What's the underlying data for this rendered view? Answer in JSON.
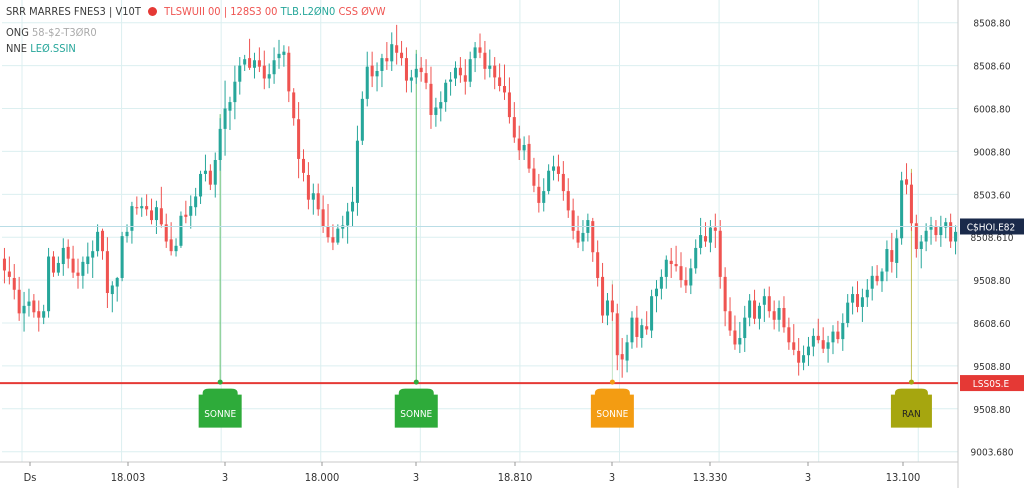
{
  "header": {
    "symbol_line": "SRR MARRES FNES3 | V10T",
    "ohlc_red": "TLSWUII 00 | 128S3 00",
    "ohlc_green": "TLB.L2ØN0",
    "ohlc_tail": "CSS ØVW",
    "line2_label": "ONG",
    "line2_value": "58-$2-T3ØR0",
    "line3_label": "NNE",
    "line3_value": "LEØ.SSIN"
  },
  "colors": {
    "up": "#26a69a",
    "down": "#ef5350",
    "support_line": "#e53935",
    "grid": "#dceff0",
    "current_label_bg": "#1a2a4a",
    "marker_green": "#2eab3a",
    "marker_orange": "#f39c12",
    "marker_olive": "#a6a60f"
  },
  "chart_data": {
    "type": "candlestick",
    "y_axis": {
      "ticks": [
        "8508.80",
        "8508.60",
        "6008.80",
        "9008.80",
        "8503.60",
        "8508.610",
        "9508.80",
        "8608.60",
        "9508.80",
        "9508.80",
        "9003.680"
      ],
      "tick_values": [
        8600,
        8560,
        8520,
        8480,
        8440,
        8400,
        8360,
        8320,
        8280,
        8240,
        8200
      ],
      "range": [
        8196,
        8610
      ]
    },
    "x_axis": {
      "ticks": [
        "Ds",
        "18.003",
        "3",
        "18.000",
        "3",
        "18.810",
        "3",
        "13.330",
        "3",
        "13.100"
      ]
    },
    "current_price": {
      "value": 8410,
      "label": "C$HOI.E82"
    },
    "support": {
      "value": 8264,
      "label": "LSS0S.E"
    },
    "markers": [
      {
        "label": "SONNE",
        "color": "green",
        "candle": 44
      },
      {
        "label": "SONNE",
        "color": "green",
        "candle": 84
      },
      {
        "label": "SONNE",
        "color": "orange",
        "candle": 124
      },
      {
        "label": "RAN",
        "color": "olive",
        "candle": 185
      }
    ],
    "candles": [
      [
        8380,
        8390,
        8357,
        8369
      ],
      [
        8368,
        8382,
        8356,
        8363
      ],
      [
        8362,
        8375,
        8342,
        8351
      ],
      [
        8351,
        8363,
        8322,
        8329
      ],
      [
        8329,
        8349,
        8312,
        8336
      ],
      [
        8336,
        8352,
        8326,
        8340
      ],
      [
        8341,
        8347,
        8325,
        8330
      ],
      [
        8331,
        8341,
        8312,
        8325
      ],
      [
        8325,
        8337,
        8319,
        8331
      ],
      [
        8331,
        8390,
        8325,
        8382
      ],
      [
        8382,
        8387,
        8363,
        8367
      ],
      [
        8367,
        8382,
        8364,
        8376
      ],
      [
        8375,
        8399,
        8364,
        8390
      ],
      [
        8391,
        8398,
        8371,
        8380
      ],
      [
        8380,
        8392,
        8362,
        8367
      ],
      [
        8367,
        8380,
        8352,
        8364
      ],
      [
        8364,
        8382,
        8352,
        8377
      ],
      [
        8375,
        8395,
        8366,
        8382
      ],
      [
        8381,
        8397,
        8362,
        8387
      ],
      [
        8387,
        8412,
        8382,
        8405
      ],
      [
        8406,
        8408,
        8379,
        8387
      ],
      [
        8387,
        8400,
        8334,
        8348
      ],
      [
        8347,
        8359,
        8330,
        8355
      ],
      [
        8354,
        8363,
        8340,
        8362
      ],
      [
        8362,
        8405,
        8359,
        8401
      ],
      [
        8401,
        8412,
        8395,
        8405
      ],
      [
        8406,
        8433,
        8394,
        8429
      ],
      [
        8428,
        8438,
        8421,
        8427
      ],
      [
        8427,
        8437,
        8419,
        8429
      ],
      [
        8429,
        8440,
        8420,
        8426
      ],
      [
        8425,
        8436,
        8412,
        8416
      ],
      [
        8416,
        8434,
        8403,
        8428
      ],
      [
        8427,
        8447,
        8409,
        8412
      ],
      [
        8412,
        8422,
        8390,
        8396
      ],
      [
        8398,
        8414,
        8383,
        8387
      ],
      [
        8387,
        8399,
        8382,
        8392
      ],
      [
        8392,
        8424,
        8390,
        8420
      ],
      [
        8421,
        8434,
        8413,
        8419
      ],
      [
        8420,
        8439,
        8408,
        8429
      ],
      [
        8428,
        8446,
        8420,
        8438
      ],
      [
        8438,
        8462,
        8431,
        8459
      ],
      [
        8459,
        8477,
        8452,
        8462
      ],
      [
        8462,
        8468,
        8444,
        8449
      ],
      [
        8449,
        8479,
        8437,
        8472
      ],
      [
        8472,
        8511,
        8462,
        8501
      ],
      [
        8501,
        8546,
        8476,
        8520
      ],
      [
        8518,
        8531,
        8500,
        8526
      ],
      [
        8526,
        8560,
        8510,
        8545
      ],
      [
        8545,
        8568,
        8533,
        8560
      ],
      [
        8561,
        8570,
        8555,
        8566
      ],
      [
        8567,
        8585,
        8556,
        8558
      ],
      [
        8558,
        8572,
        8548,
        8565
      ],
      [
        8565,
        8577,
        8554,
        8559
      ],
      [
        8560,
        8574,
        8538,
        8548
      ],
      [
        8548,
        8562,
        8539,
        8552
      ],
      [
        8552,
        8577,
        8543,
        8565
      ],
      [
        8567,
        8584,
        8557,
        8571
      ],
      [
        8570,
        8579,
        8559,
        8573
      ],
      [
        8572,
        8578,
        8526,
        8536
      ],
      [
        8535,
        8539,
        8504,
        8511
      ],
      [
        8510,
        8526,
        8455,
        8473
      ],
      [
        8473,
        8482,
        8452,
        8460
      ],
      [
        8458,
        8470,
        8426,
        8435
      ],
      [
        8435,
        8450,
        8421,
        8441
      ],
      [
        8441,
        8450,
        8420,
        8426
      ],
      [
        8426,
        8439,
        8404,
        8410
      ],
      [
        8410,
        8431,
        8395,
        8400
      ],
      [
        8400,
        8412,
        8388,
        8395
      ],
      [
        8395,
        8412,
        8393,
        8408
      ],
      [
        8408,
        8420,
        8399,
        8411
      ],
      [
        8411,
        8432,
        8394,
        8424
      ],
      [
        8424,
        8447,
        8410,
        8433
      ],
      [
        8432,
        8504,
        8420,
        8490
      ],
      [
        8490,
        8536,
        8486,
        8529
      ],
      [
        8529,
        8573,
        8522,
        8559
      ],
      [
        8560,
        8573,
        8540,
        8550
      ],
      [
        8550,
        8563,
        8536,
        8555
      ],
      [
        8555,
        8571,
        8540,
        8567
      ],
      [
        8567,
        8582,
        8556,
        8564
      ],
      [
        8564,
        8591,
        8555,
        8580
      ],
      [
        8579,
        8598,
        8561,
        8572
      ],
      [
        8572,
        8583,
        8560,
        8567
      ],
      [
        8567,
        8577,
        8535,
        8546
      ],
      [
        8546,
        8556,
        8535,
        8549
      ],
      [
        8549,
        8571,
        8543,
        8557
      ],
      [
        8558,
        8568,
        8545,
        8554
      ],
      [
        8553,
        8566,
        8538,
        8544
      ],
      [
        8543,
        8559,
        8501,
        8514
      ],
      [
        8514,
        8530,
        8503,
        8521
      ],
      [
        8520,
        8536,
        8508,
        8526
      ],
      [
        8526,
        8547,
        8517,
        8544
      ],
      [
        8545,
        8554,
        8532,
        8547
      ],
      [
        8548,
        8564,
        8541,
        8558
      ],
      [
        8558,
        8568,
        8544,
        8551
      ],
      [
        8551,
        8566,
        8533,
        8545
      ],
      [
        8545,
        8573,
        8540,
        8566
      ],
      [
        8567,
        8582,
        8554,
        8577
      ],
      [
        8577,
        8590,
        8567,
        8572
      ],
      [
        8572,
        8583,
        8547,
        8557
      ],
      [
        8557,
        8575,
        8549,
        8560
      ],
      [
        8560,
        8568,
        8538,
        8549
      ],
      [
        8549,
        8562,
        8536,
        8541
      ],
      [
        8541,
        8561,
        8528,
        8535
      ],
      [
        8535,
        8549,
        8506,
        8512
      ],
      [
        8512,
        8526,
        8488,
        8493
      ],
      [
        8492,
        8504,
        8472,
        8481
      ],
      [
        8481,
        8494,
        8472,
        8486
      ],
      [
        8487,
        8495,
        8460,
        8464
      ],
      [
        8464,
        8474,
        8442,
        8448
      ],
      [
        8447,
        8459,
        8423,
        8432
      ],
      [
        8432,
        8455,
        8424,
        8443
      ],
      [
        8443,
        8468,
        8440,
        8462
      ],
      [
        8462,
        8476,
        8453,
        8466
      ],
      [
        8466,
        8477,
        8452,
        8459
      ],
      [
        8459,
        8471,
        8434,
        8443
      ],
      [
        8443,
        8455,
        8418,
        8425
      ],
      [
        8425,
        8436,
        8398,
        8406
      ],
      [
        8406,
        8420,
        8390,
        8395
      ],
      [
        8396,
        8416,
        8387,
        8404
      ],
      [
        8404,
        8422,
        8396,
        8416
      ],
      [
        8415,
        8418,
        8377,
        8386
      ],
      [
        8386,
        8397,
        8354,
        8362
      ],
      [
        8363,
        8376,
        8320,
        8327
      ],
      [
        8327,
        8348,
        8318,
        8341
      ],
      [
        8341,
        8356,
        8322,
        8330
      ],
      [
        8329,
        8338,
        8276,
        8290
      ],
      [
        8291,
        8306,
        8269,
        8286
      ],
      [
        8285,
        8309,
        8274,
        8302
      ],
      [
        8302,
        8331,
        8296,
        8325
      ],
      [
        8325,
        8336,
        8297,
        8307
      ],
      [
        8306,
        8324,
        8297,
        8318
      ],
      [
        8317,
        8331,
        8309,
        8314
      ],
      [
        8313,
        8351,
        8306,
        8345
      ],
      [
        8345,
        8360,
        8330,
        8352
      ],
      [
        8352,
        8370,
        8342,
        8363
      ],
      [
        8363,
        8383,
        8352,
        8379
      ],
      [
        8378,
        8390,
        8362,
        8375
      ],
      [
        8375,
        8392,
        8368,
        8373
      ],
      [
        8373,
        8386,
        8353,
        8360
      ],
      [
        8360,
        8372,
        8348,
        8355
      ],
      [
        8355,
        8380,
        8347,
        8371
      ],
      [
        8371,
        8398,
        8366,
        8390
      ],
      [
        8390,
        8418,
        8384,
        8402
      ],
      [
        8401,
        8414,
        8391,
        8396
      ],
      [
        8395,
        8416,
        8386,
        8409
      ],
      [
        8409,
        8422,
        8390,
        8406
      ],
      [
        8406,
        8416,
        8352,
        8363
      ],
      [
        8363,
        8372,
        8317,
        8331
      ],
      [
        8331,
        8344,
        8308,
        8313
      ],
      [
        8313,
        8327,
        8295,
        8300
      ],
      [
        8300,
        8321,
        8292,
        8306
      ],
      [
        8306,
        8336,
        8293,
        8325
      ],
      [
        8325,
        8347,
        8317,
        8341
      ],
      [
        8341,
        8351,
        8319,
        8324
      ],
      [
        8324,
        8339,
        8314,
        8336
      ],
      [
        8337,
        8352,
        8321,
        8345
      ],
      [
        8345,
        8354,
        8325,
        8331
      ],
      [
        8331,
        8341,
        8314,
        8323
      ],
      [
        8323,
        8341,
        8312,
        8334
      ],
      [
        8334,
        8345,
        8311,
        8316
      ],
      [
        8316,
        8325,
        8295,
        8302
      ],
      [
        8302,
        8319,
        8290,
        8295
      ],
      [
        8294,
        8306,
        8271,
        8283
      ],
      [
        8283,
        8299,
        8276,
        8290
      ],
      [
        8290,
        8307,
        8280,
        8298
      ],
      [
        8298,
        8315,
        8289,
        8308
      ],
      [
        8308,
        8324,
        8301,
        8304
      ],
      [
        8304,
        8316,
        8292,
        8296
      ],
      [
        8296,
        8308,
        8283,
        8302
      ],
      [
        8302,
        8318,
        8291,
        8312
      ],
      [
        8312,
        8322,
        8301,
        8305
      ],
      [
        8305,
        8329,
        8294,
        8320
      ],
      [
        8320,
        8347,
        8316,
        8339
      ],
      [
        8339,
        8354,
        8328,
        8347
      ],
      [
        8347,
        8359,
        8330,
        8335
      ],
      [
        8335,
        8352,
        8321,
        8344
      ],
      [
        8344,
        8361,
        8335,
        8351
      ],
      [
        8352,
        8373,
        8341,
        8364
      ],
      [
        8364,
        8374,
        8355,
        8359
      ],
      [
        8359,
        8371,
        8349,
        8368
      ],
      [
        8368,
        8397,
        8359,
        8389
      ],
      [
        8388,
        8404,
        8367,
        8377
      ],
      [
        8376,
        8407,
        8362,
        8399
      ],
      [
        8399,
        8461,
        8393,
        8453
      ],
      [
        8454,
        8469,
        8440,
        8449
      ],
      [
        8449,
        8460,
        8406,
        8413
      ],
      [
        8413,
        8421,
        8381,
        8389
      ],
      [
        8389,
        8402,
        8371,
        8396
      ],
      [
        8396,
        8413,
        8387,
        8406
      ],
      [
        8407,
        8419,
        8393,
        8411
      ],
      [
        8410,
        8416,
        8396,
        8402
      ],
      [
        8402,
        8420,
        8391,
        8410
      ],
      [
        8409,
        8418,
        8399,
        8414
      ],
      [
        8414,
        8422,
        8390,
        8396
      ],
      [
        8396,
        8411,
        8384,
        8405
      ]
    ]
  }
}
